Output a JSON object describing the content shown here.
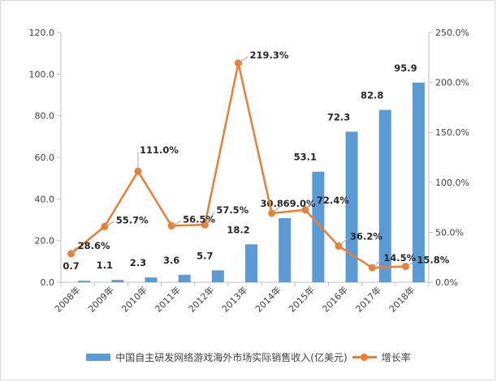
{
  "chart_data": {
    "type": "bar",
    "categories": [
      "2008年",
      "2009年",
      "2010年",
      "2011年",
      "2012年",
      "2013年",
      "2014年",
      "2015年",
      "2016年",
      "2017年",
      "2018年"
    ],
    "series": [
      {
        "name": "中国自主研发网络游戏海外市场实际销售收入(亿美元)",
        "type": "bar",
        "axis": "left",
        "color": "#5b9bd5",
        "values": [
          0.7,
          1.1,
          2.3,
          3.6,
          5.7,
          18.2,
          30.8,
          53.1,
          72.3,
          82.8,
          95.9
        ],
        "labels": [
          "0.7",
          "1.1",
          "2.3",
          "3.6",
          "5.7",
          "18.2",
          "30.8",
          "53.1",
          "72.3",
          "82.8",
          "95.9"
        ]
      },
      {
        "name": "增长率",
        "type": "line",
        "axis": "right",
        "color": "#ed7d31",
        "values": [
          28.6,
          55.7,
          111.0,
          56.5,
          57.5,
          219.3,
          69.0,
          72.4,
          36.2,
          14.5,
          15.8
        ],
        "labels": [
          "28.6%",
          "55.7%",
          "111.0%",
          "56.5%",
          "57.5%",
          "219.3%",
          "69.0%",
          "72.4%",
          "36.2%",
          "14.5%",
          "15.8%"
        ]
      }
    ],
    "y_left": {
      "ylim": [
        0,
        120
      ],
      "ticks": [
        "0.0",
        "20.0",
        "40.0",
        "60.0",
        "80.0",
        "100.0",
        "120.0"
      ]
    },
    "y_right": {
      "ylim": [
        0,
        250
      ],
      "ticks": [
        "0.0%",
        "50.0%",
        "100.0%",
        "150.0%",
        "200.0%",
        "250.0%"
      ]
    },
    "grid": false,
    "legend": "bottom"
  }
}
